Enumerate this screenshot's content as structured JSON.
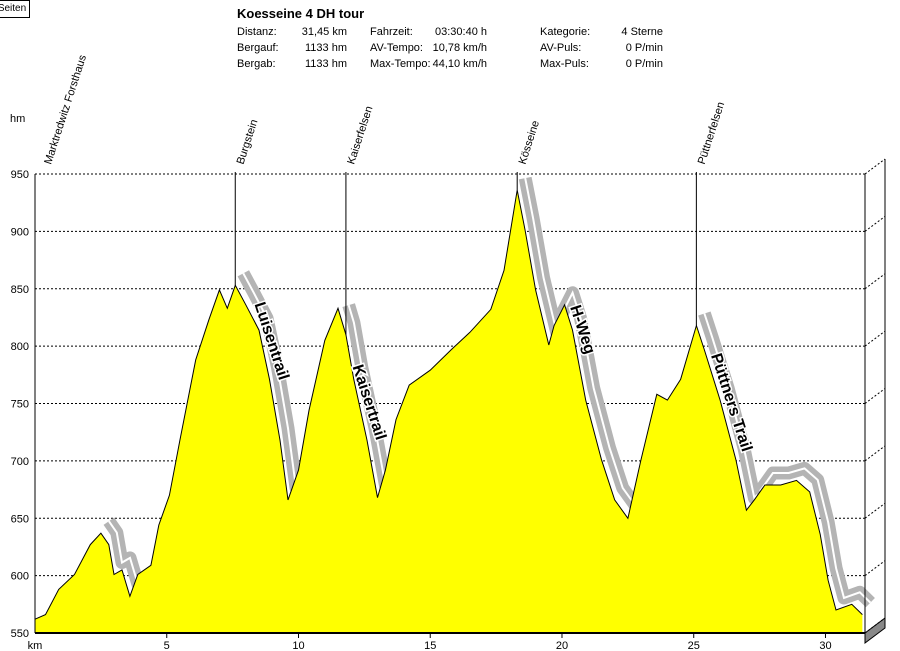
{
  "button": "Seiten",
  "header": {
    "title": "Koesseine 4 DH tour",
    "stats": [
      [
        "Distanz:",
        "31,45 km",
        "Fahrzeit:",
        "03:30:40 h",
        "Kategorie:",
        "4 Sterne"
      ],
      [
        "Bergauf:",
        "1133 hm",
        "AV-Tempo:",
        "10,78 km/h",
        "AV-Puls:",
        "0 P/min"
      ],
      [
        "Bergab:",
        "1133 hm",
        "Max-Tempo:",
        "44,10 km/h",
        "Max-Puls:",
        "0 P/min"
      ]
    ]
  },
  "chart_data": {
    "type": "area",
    "x_label": "km",
    "y_label": "hm",
    "color": "#ffff00",
    "x": [
      0,
      0.4,
      0.9,
      1.5,
      2.1,
      2.5,
      2.8,
      3.0,
      3.3,
      3.6,
      3.9,
      4.4,
      4.7,
      5.1,
      5.5,
      6.1,
      6.6,
      7.0,
      7.3,
      7.6,
      8.0,
      8.5,
      8.9,
      9.3,
      9.6,
      10.0,
      10.4,
      11.0,
      11.5,
      11.8,
      12.1,
      12.6,
      13.0,
      13.3,
      13.7,
      14.2,
      15.0,
      15.8,
      16.5,
      17.3,
      17.8,
      18.3,
      18.6,
      19.0,
      19.5,
      19.7,
      20.1,
      20.4,
      20.9,
      21.5,
      22.0,
      22.5,
      23.0,
      23.6,
      24.0,
      24.5,
      25.1,
      25.4,
      26.0,
      26.6,
      27.0,
      27.3,
      27.7,
      28.3,
      28.9,
      29.4,
      29.8,
      30.1,
      30.4,
      31.0,
      31.4
    ],
    "values": [
      562,
      566,
      588,
      601,
      627,
      637,
      627,
      601,
      605,
      582,
      601,
      609,
      644,
      670,
      718,
      788,
      823,
      849,
      833,
      853,
      836,
      814,
      771,
      718,
      666,
      692,
      744,
      805,
      833,
      810,
      771,
      718,
      668,
      692,
      736,
      766,
      779,
      797,
      812,
      832,
      866,
      936,
      901,
      849,
      801,
      818,
      836,
      814,
      753,
      701,
      666,
      650,
      701,
      758,
      753,
      771,
      818,
      797,
      753,
      701,
      657,
      666,
      679,
      679,
      683,
      673,
      636,
      596,
      570,
      575,
      566
    ],
    "xlim": [
      0,
      31.5
    ],
    "xticks": [
      5,
      10,
      15,
      20,
      25,
      30
    ],
    "ylim": [
      550,
      950
    ],
    "yticks": [
      550,
      600,
      650,
      700,
      750,
      800,
      850,
      900,
      950
    ],
    "grid": true,
    "waypoints": [
      {
        "label": "Marktredwitz Forsthaus",
        "km": 0.3
      },
      {
        "label": "Burgstein",
        "km": 7.6
      },
      {
        "label": "Kaiserfelsen",
        "km": 11.8
      },
      {
        "label": "Kösseine",
        "km": 18.3
      },
      {
        "label": "Püttnerfelsen",
        "km": 25.1
      }
    ],
    "trails": [
      {
        "label": "Luisentrail",
        "from": 7.6,
        "to": 9.7
      },
      {
        "label": "Kaisertrail",
        "from": 11.6,
        "to": 13.1
      },
      {
        "label": "H-Weg",
        "from": 18.3,
        "to": 22.6
      },
      {
        "label": "Püttners Trail",
        "from": 25.1,
        "to": 27.1
      }
    ],
    "highlight_ranges": [
      [
        2.5,
        3.7
      ],
      [
        27.2,
        31.4
      ]
    ]
  }
}
